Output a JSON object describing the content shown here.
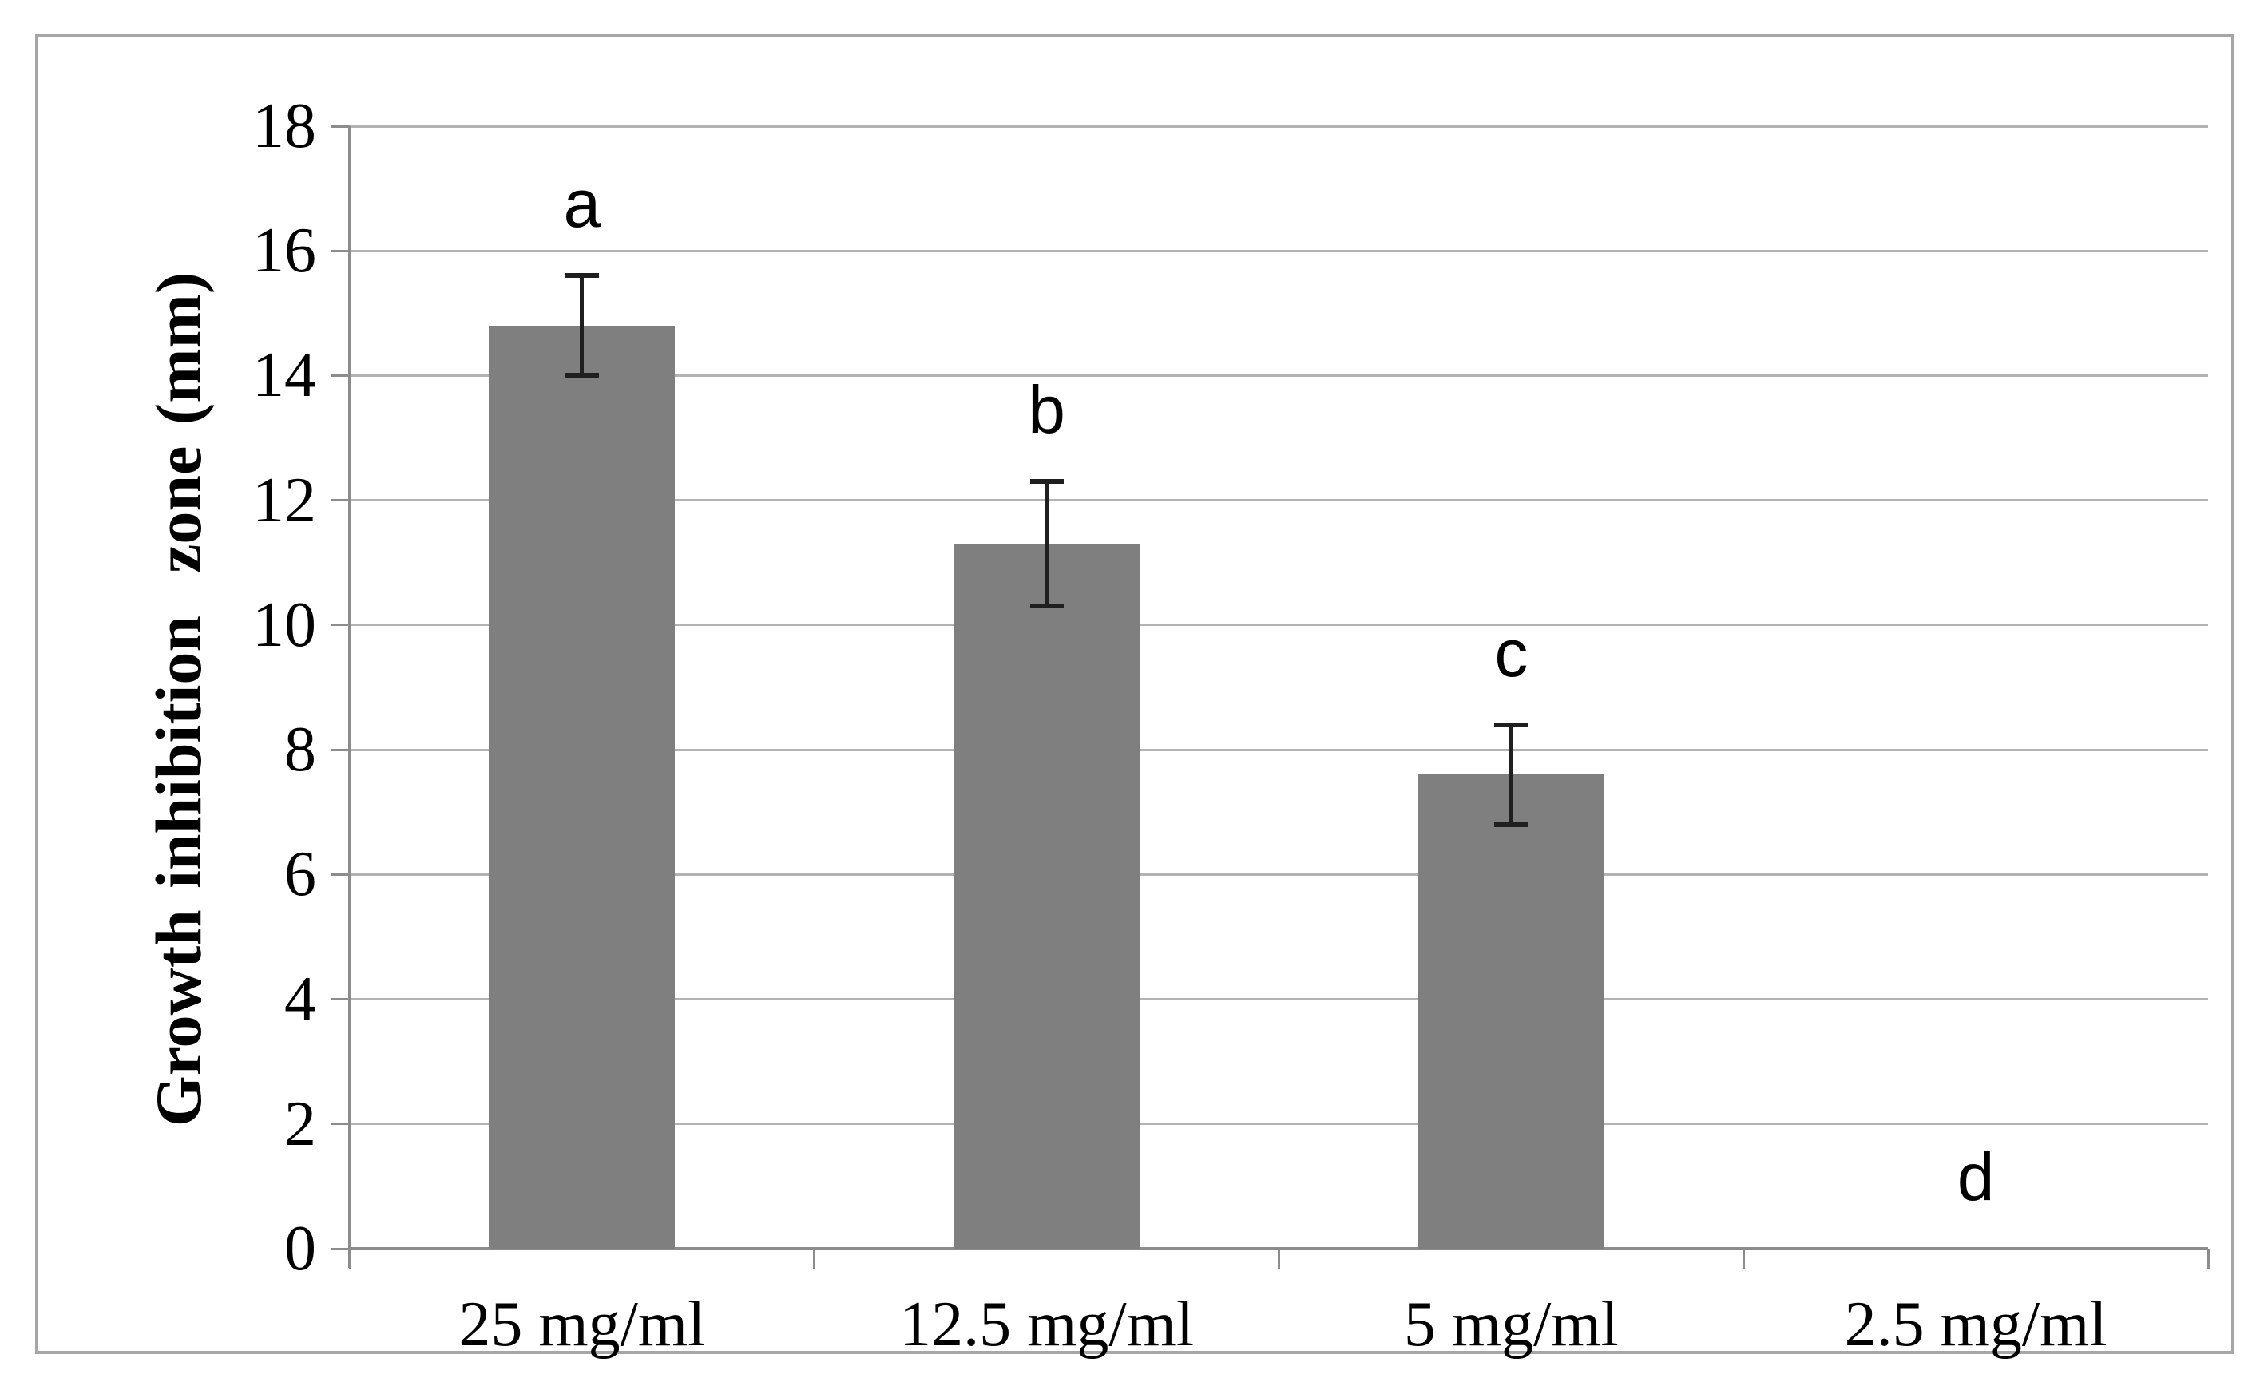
{
  "chart_data": {
    "type": "bar",
    "title": "",
    "ylabel": "Growth inhibition  zone (mm)",
    "xlabel": "",
    "categories": [
      "25 mg/ml",
      "12.5 mg/ml",
      "5 mg/ml",
      "2.5 mg/ml"
    ],
    "values": [
      14.8,
      11.3,
      7.6,
      0
    ],
    "error_bars": [
      0.8,
      1.0,
      0.8,
      0
    ],
    "significance_letters": [
      "a",
      "b",
      "c",
      "d"
    ],
    "yticks": [
      0,
      2,
      4,
      6,
      8,
      10,
      12,
      14,
      16,
      18
    ],
    "ylim": [
      0,
      18
    ],
    "ytick_step": 2,
    "grid": "horizontal",
    "legend": "none",
    "bar_color": "#7f7f7f",
    "gridline_color": "#b3b3b3",
    "axis_color": "#8c8c8c",
    "error_bar_color": "#1f1f1f",
    "text_color": "#000000",
    "frame_color": "#a6a6a6",
    "background_color": "#ffffff"
  }
}
